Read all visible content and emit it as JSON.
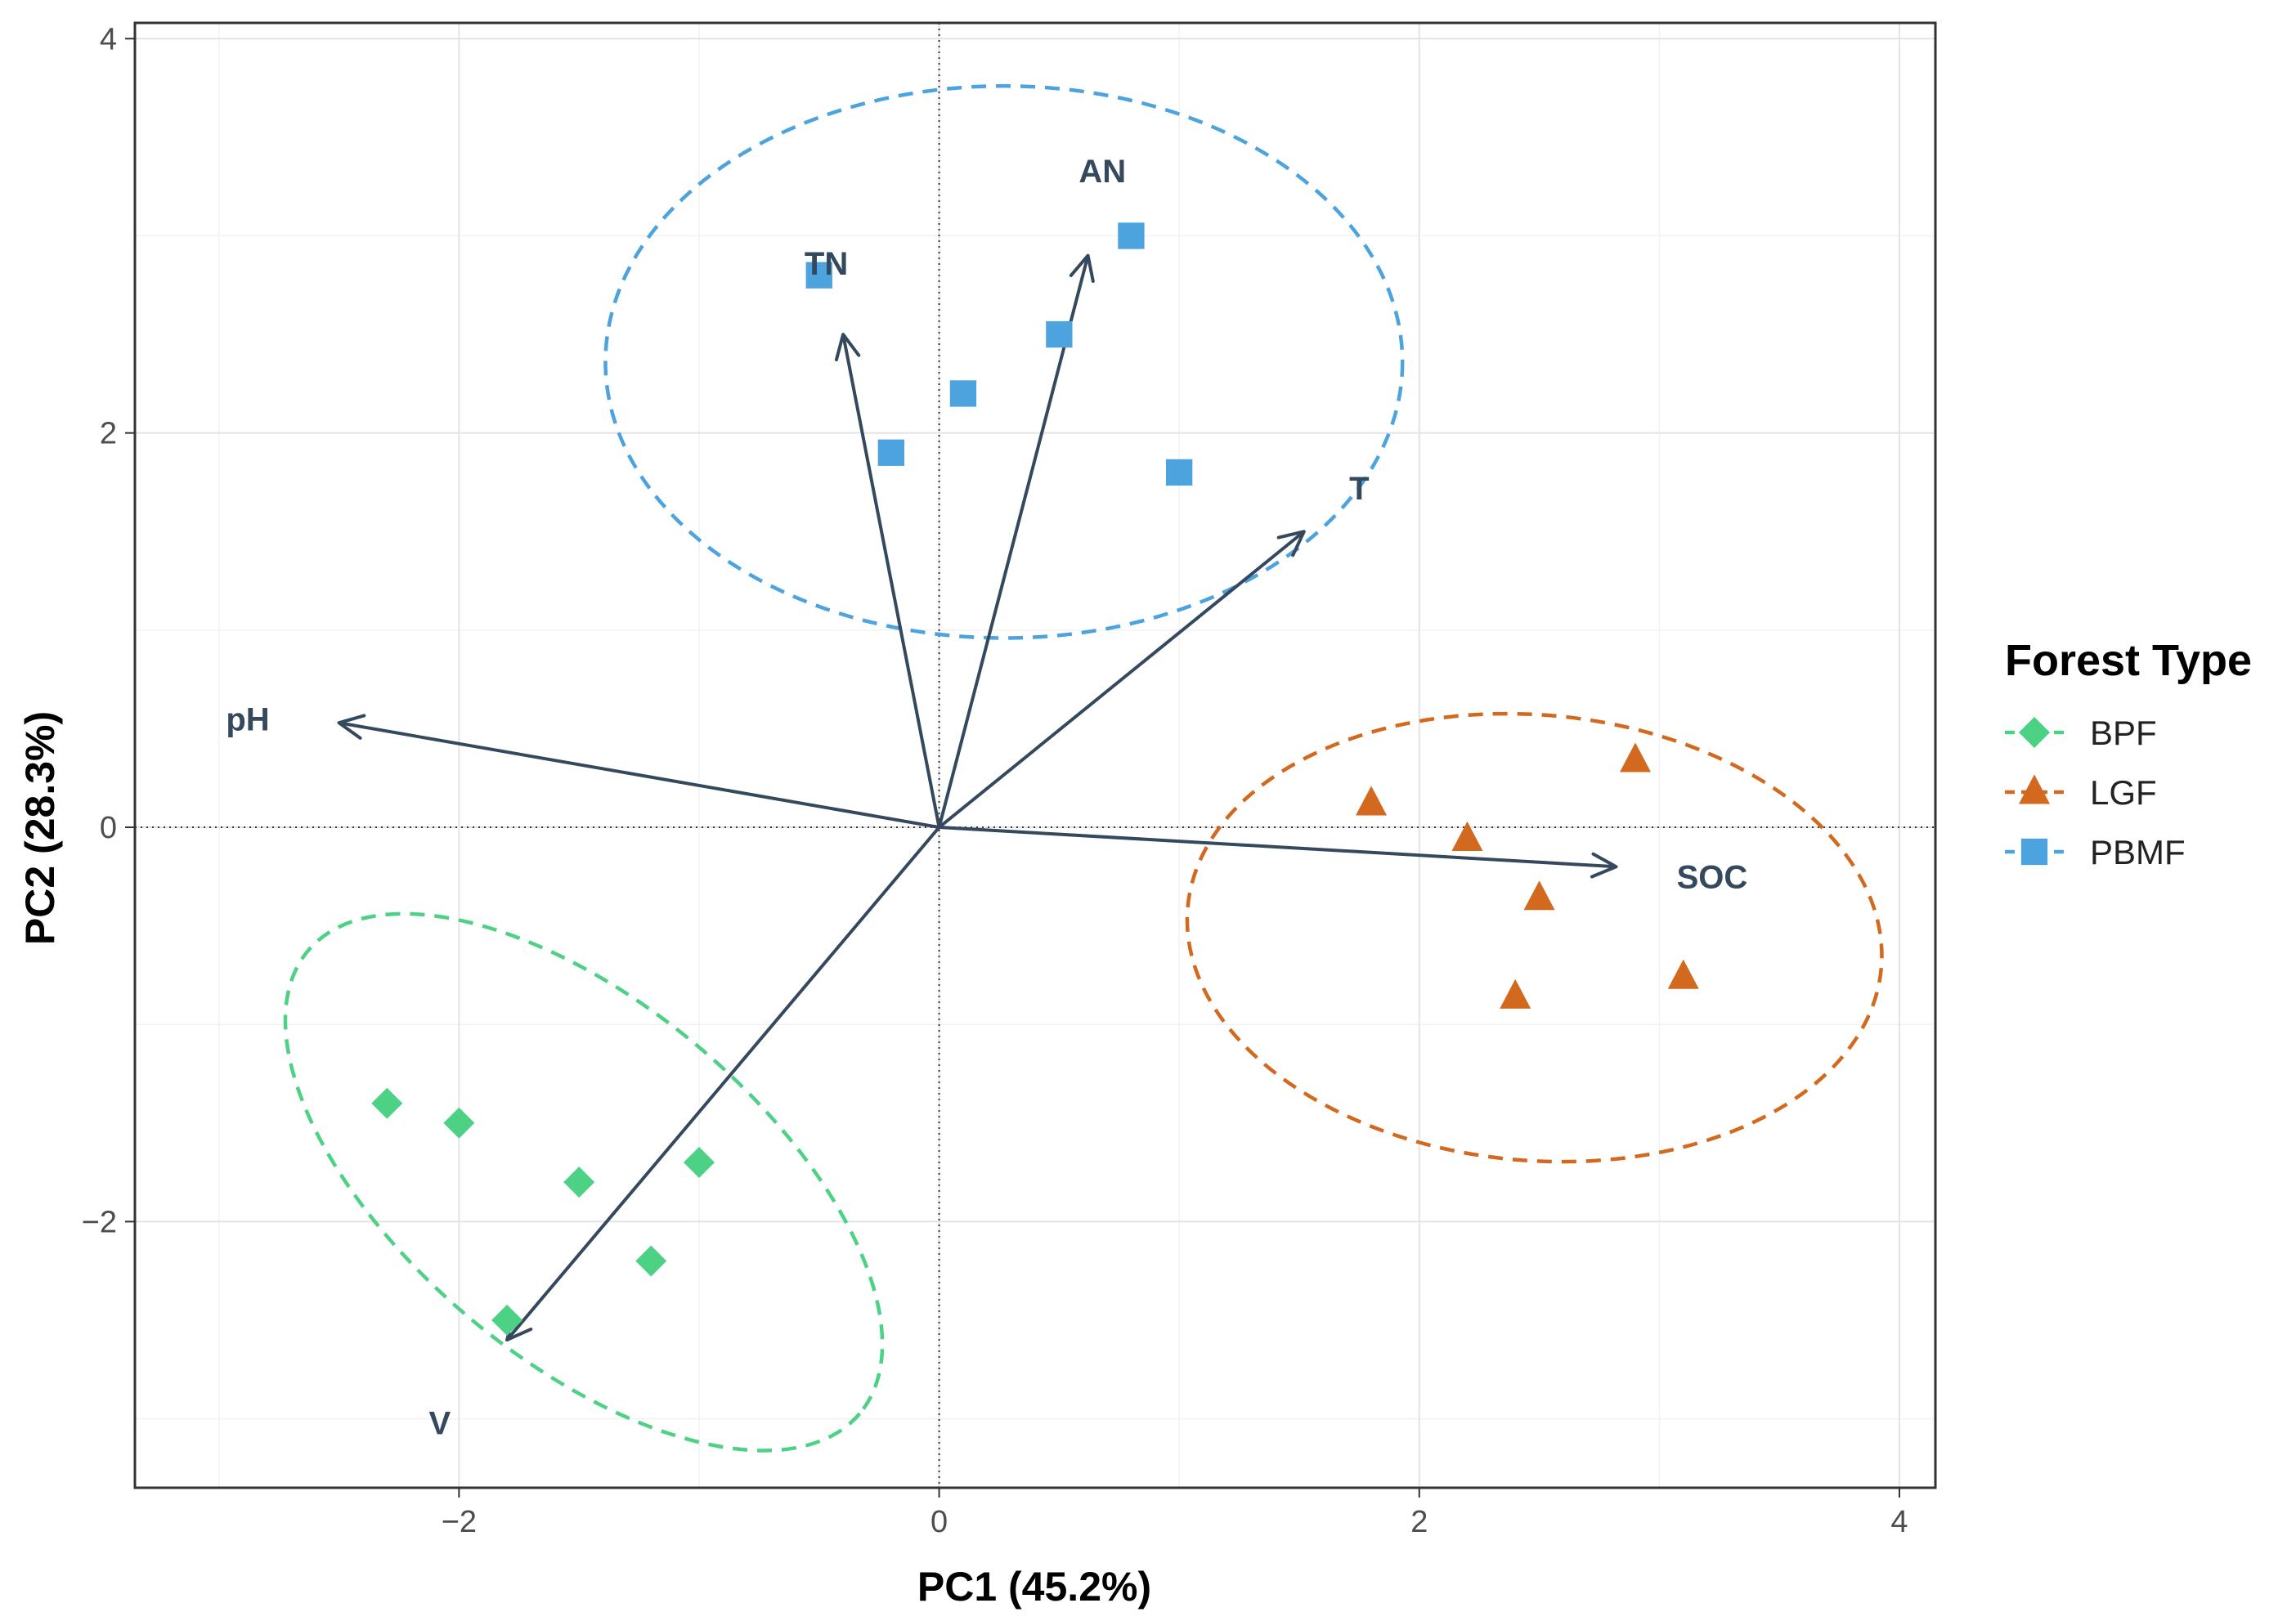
{
  "chart_data": {
    "type": "scatter",
    "subtype": "pca-biplot",
    "xlabel": "PC1 (45.2%)",
    "ylabel": "PC2 (28.3%)",
    "xlim": [
      -3.35,
      4.15
    ],
    "ylim": [
      -3.35,
      4.08
    ],
    "xticks": [
      -2,
      0,
      2,
      4
    ],
    "yticks": [
      -2,
      0,
      2,
      4
    ],
    "grid": true,
    "legend": {
      "title": "Forest Type",
      "position": "right",
      "entries": [
        "BPF",
        "LGF",
        "PBMF"
      ]
    },
    "series": [
      {
        "name": "BPF",
        "color": "#4dd184",
        "marker": "diamond",
        "points": [
          [
            -2.3,
            -1.4
          ],
          [
            -2.0,
            -1.5
          ],
          [
            -1.5,
            -1.8
          ],
          [
            -1.0,
            -1.7
          ],
          [
            -1.2,
            -2.2
          ],
          [
            -1.8,
            -2.5
          ]
        ],
        "ellipse": {
          "cx": -1.48,
          "cy": -1.8,
          "rx": 1.5,
          "ry": 0.9,
          "angle": -40
        }
      },
      {
        "name": "LGF",
        "color": "#d2691e",
        "marker": "triangle",
        "points": [
          [
            1.8,
            0.12
          ],
          [
            2.2,
            -0.06
          ],
          [
            2.9,
            0.34
          ],
          [
            2.5,
            -0.36
          ],
          [
            2.4,
            -0.86
          ],
          [
            3.1,
            -0.76
          ]
        ],
        "ellipse": {
          "cx": 2.48,
          "cy": -0.56,
          "rx": 1.45,
          "ry": 1.13,
          "angle": -5
        }
      },
      {
        "name": "PBMF",
        "color": "#4ca3dd",
        "marker": "square",
        "points": [
          [
            -0.5,
            2.8
          ],
          [
            0.8,
            3.0
          ],
          [
            0.5,
            2.5
          ],
          [
            0.1,
            2.2
          ],
          [
            -0.2,
            1.9
          ],
          [
            1.0,
            1.8
          ]
        ],
        "ellipse": {
          "cx": 0.27,
          "cy": 2.36,
          "rx": 1.66,
          "ry": 1.4,
          "angle": 0
        }
      }
    ],
    "loadings": [
      {
        "name": "AN",
        "x": 0.62,
        "y": 2.9,
        "label_x": 0.68,
        "label_y": 3.33
      },
      {
        "name": "TN",
        "x": -0.4,
        "y": 2.5,
        "label_x": -0.47,
        "label_y": 2.86
      },
      {
        "name": "T",
        "x": 1.52,
        "y": 1.5,
        "label_x": 1.75,
        "label_y": 1.72
      },
      {
        "name": "pH",
        "x": -2.5,
        "y": 0.53,
        "label_x": -2.88,
        "label_y": 0.55
      },
      {
        "name": "SOC",
        "x": 2.82,
        "y": -0.2,
        "label_x": 3.22,
        "label_y": -0.25
      },
      {
        "name": "V",
        "x": -1.8,
        "y": -2.6,
        "label_x": -2.08,
        "label_y": -3.02
      }
    ]
  }
}
